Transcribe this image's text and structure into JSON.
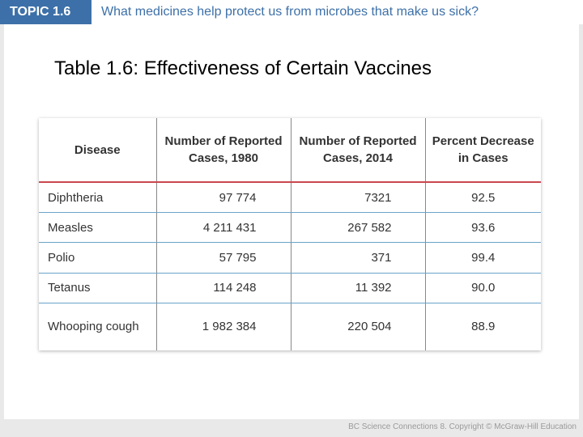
{
  "header": {
    "topic": "TOPIC 1.6",
    "question": "What medicines help protect us from microbes that make us sick?"
  },
  "title": "Table 1.6: Effectiveness of Certain Vaccines",
  "table": {
    "headers": [
      "Disease",
      "Number of Reported Cases, 1980",
      "Number of Reported Cases, 2014",
      "Percent Decrease in Cases"
    ],
    "rows": [
      {
        "disease": "Diphtheria",
        "cases_1980": "97 774",
        "cases_2014": "7321",
        "decrease": "92.5"
      },
      {
        "disease": "Measles",
        "cases_1980": "4 211 431",
        "cases_2014": "267 582",
        "decrease": "93.6"
      },
      {
        "disease": "Polio",
        "cases_1980": "57 795",
        "cases_2014": "371",
        "decrease": "99.4"
      },
      {
        "disease": "Tetanus",
        "cases_1980": "114 248",
        "cases_2014": "11 392",
        "decrease": "90.0"
      },
      {
        "disease": "Whooping cough",
        "cases_1980": "1 982 384",
        "cases_2014": "220 504",
        "decrease": "88.9"
      }
    ]
  },
  "footer": "BC Science Connections 8. Copyright © McGraw-Hill Education",
  "colors": {
    "accent": "#3d70a8",
    "header_rule": "#c9484f",
    "row_rule": "#6aa3c8"
  }
}
